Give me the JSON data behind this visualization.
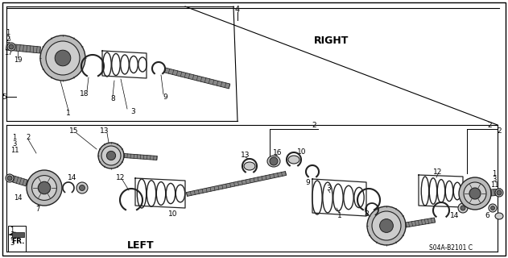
{
  "background_color": "#ffffff",
  "diagram_code": "S04A-B2101 C",
  "right_label": "RIGHT",
  "left_label": "LEFT",
  "fr_label": "FR.",
  "fig_width": 6.31,
  "fig_height": 3.2,
  "dpi": 100,
  "line_color": "#444444",
  "shaft_color": "#888888",
  "part_dark": "#222222",
  "part_mid": "#666666",
  "part_light": "#bbbbbb",
  "part_fill": "#aaaaaa",
  "bg_part": "#cccccc"
}
